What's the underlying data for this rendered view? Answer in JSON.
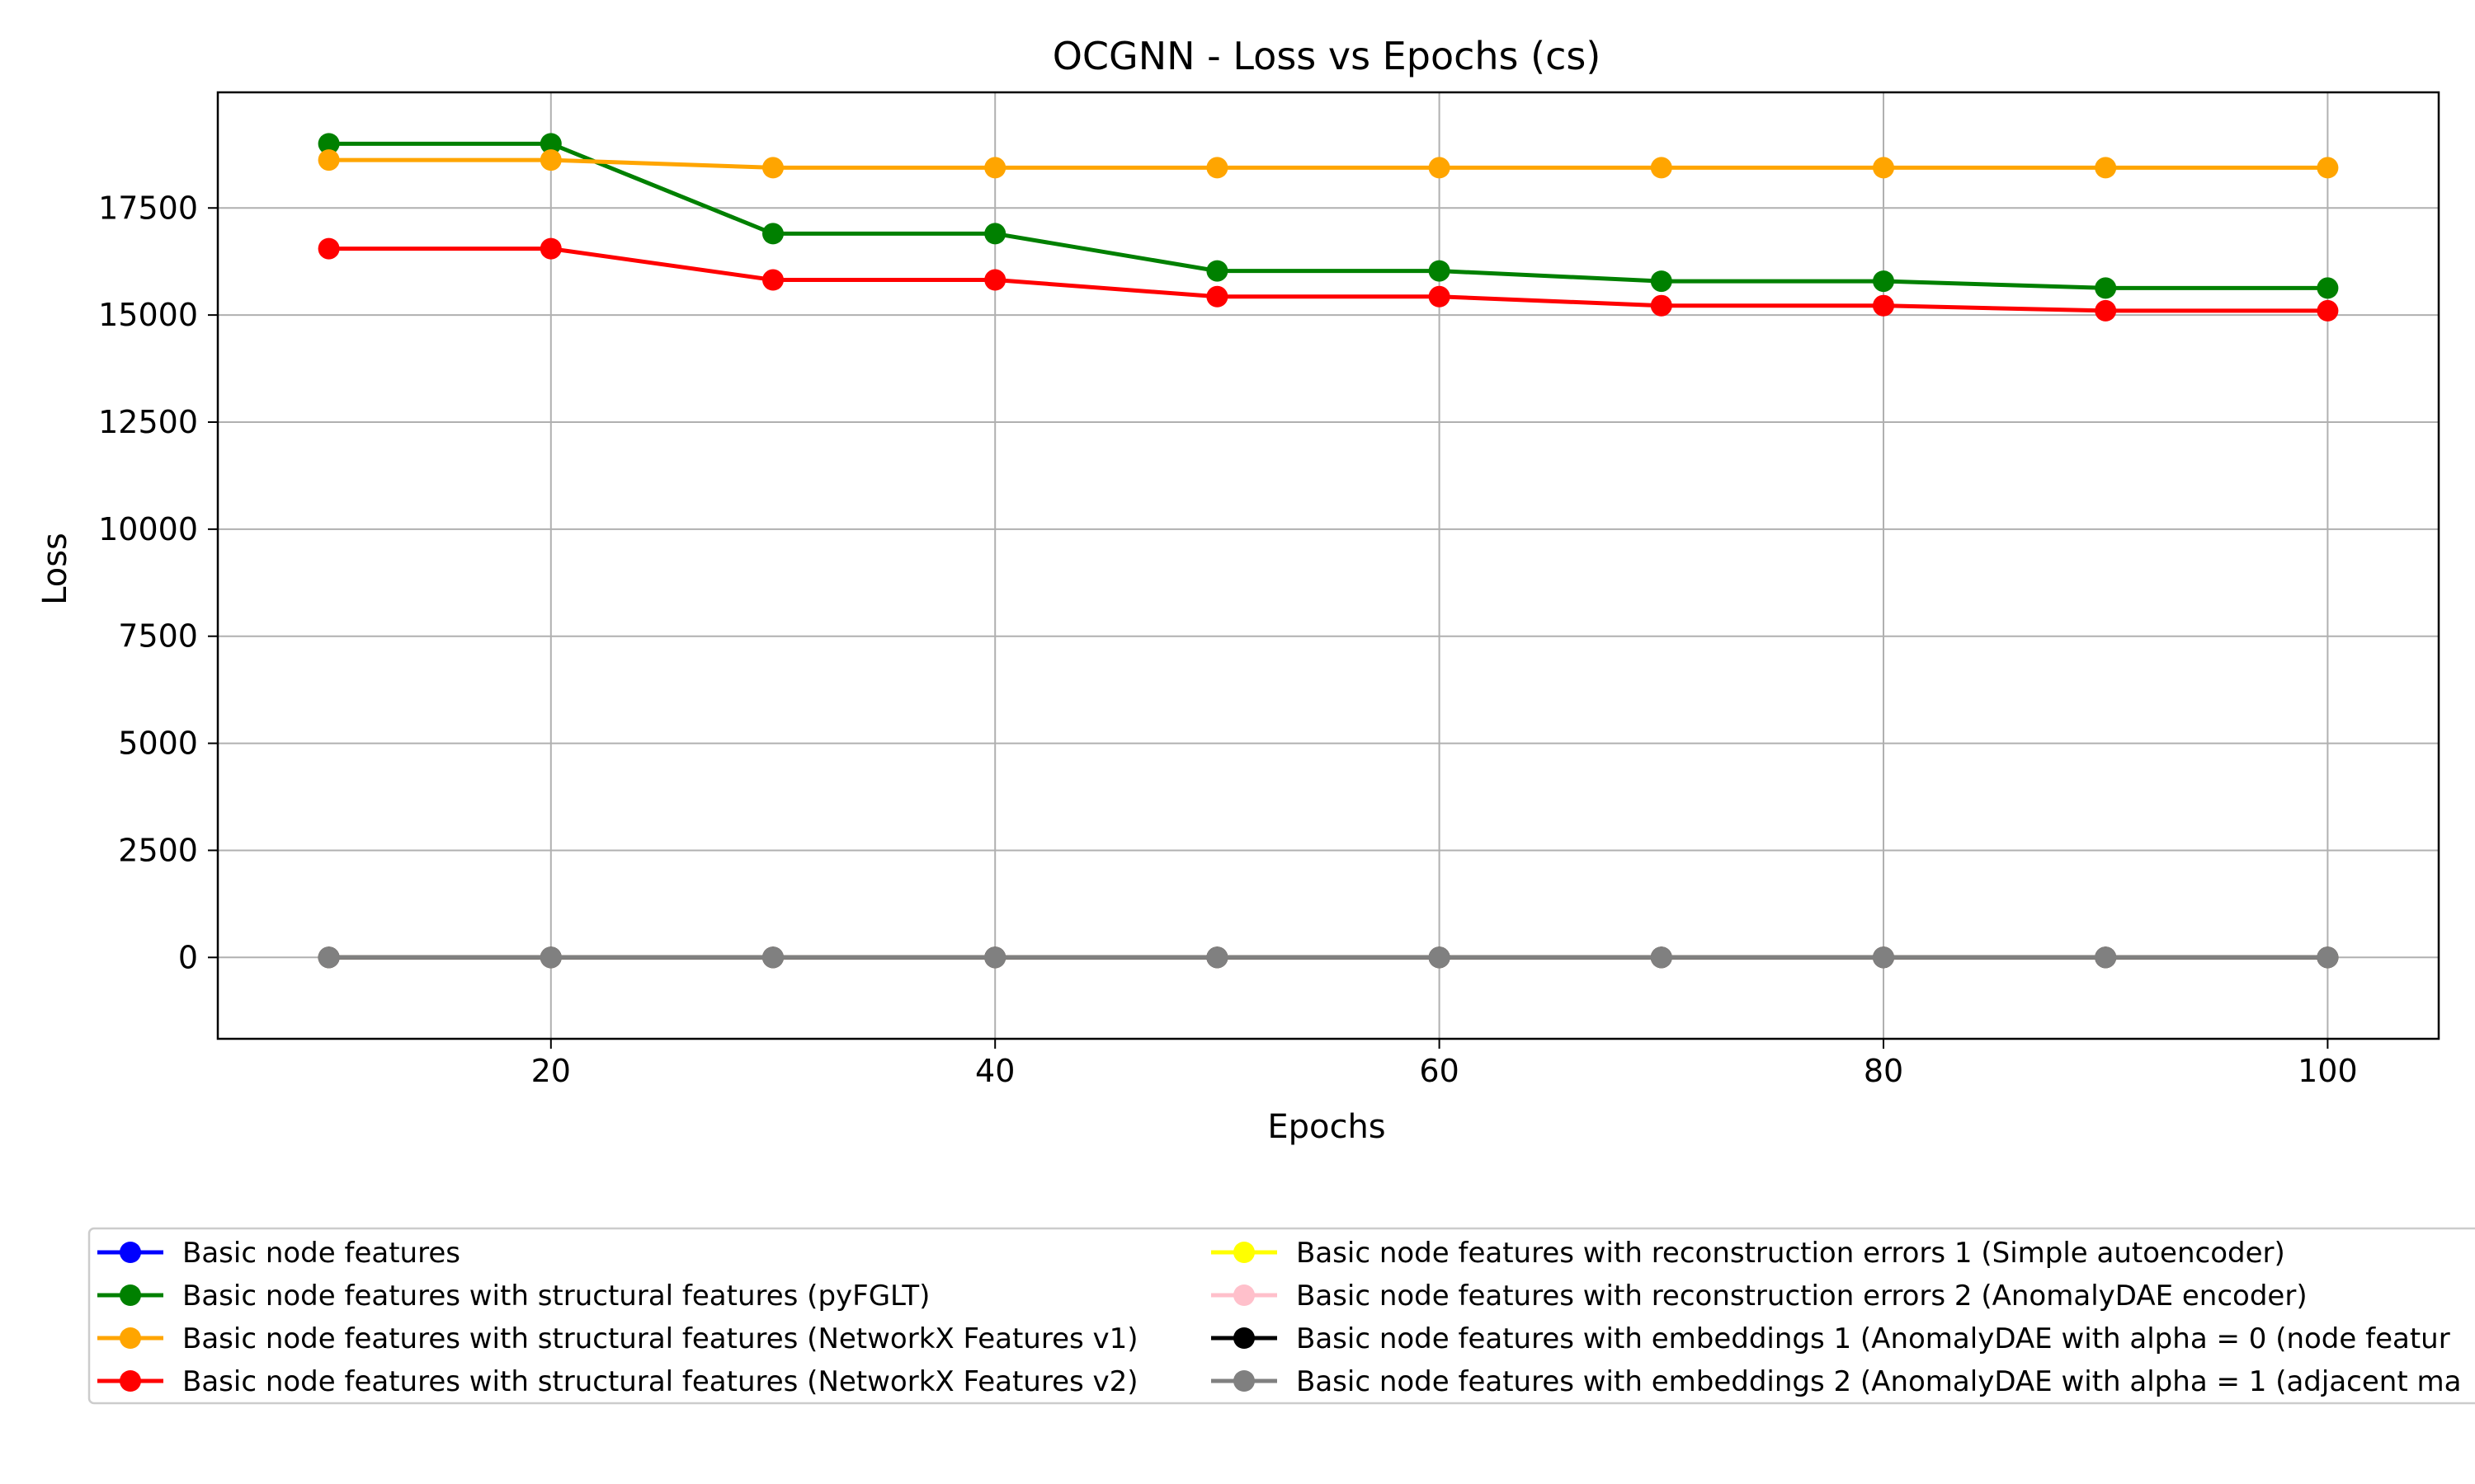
{
  "chart_data": {
    "type": "line",
    "title": "OCGNN - Loss vs Epochs (cs)",
    "xlabel": "Epochs",
    "ylabel": "Loss",
    "x": [
      10,
      20,
      30,
      40,
      50,
      60,
      70,
      80,
      90,
      100
    ],
    "xlim": [
      5,
      105
    ],
    "ylim": [
      -1900,
      20200
    ],
    "xticks": [
      20,
      40,
      60,
      80,
      100
    ],
    "yticks": [
      0,
      2500,
      5000,
      7500,
      10000,
      12500,
      15000,
      17500
    ],
    "grid": true,
    "legend_position": "bottom",
    "series": [
      {
        "name": "Basic node features",
        "color": "#0000ff",
        "values": [
          0,
          0,
          0,
          0,
          0,
          0,
          0,
          0,
          0,
          0
        ]
      },
      {
        "name": "Basic node features with structural features (pyFGLT)",
        "color": "#008000",
        "values": [
          19000,
          19000,
          16900,
          16900,
          16030,
          16030,
          15790,
          15790,
          15630,
          15630
        ]
      },
      {
        "name": "Basic node features with structural features (NetworkX Features v1)",
        "color": "#ffa500",
        "values": [
          18620,
          18620,
          18440,
          18440,
          18440,
          18440,
          18440,
          18440,
          18440,
          18440
        ]
      },
      {
        "name": "Basic node features with structural features (NetworkX Features v2)",
        "color": "#ff0000",
        "values": [
          16550,
          16550,
          15820,
          15820,
          15430,
          15430,
          15220,
          15220,
          15100,
          15100
        ]
      },
      {
        "name": "Basic node features with reconstruction errors 1 (Simple autoencoder)",
        "color": "#ffff00",
        "values": [
          0,
          0,
          0,
          0,
          0,
          0,
          0,
          0,
          0,
          0
        ]
      },
      {
        "name": "Basic node features with reconstruction errors 2 (AnomalyDAE encoder)",
        "color": "#ffc0cb",
        "values": [
          0,
          0,
          0,
          0,
          0,
          0,
          0,
          0,
          0,
          0
        ]
      },
      {
        "name": "Basic node features with embeddings 1 (AnomalyDAE with alpha = 0 (node featur",
        "color": "#000000",
        "values": [
          0,
          0,
          0,
          0,
          0,
          0,
          0,
          0,
          0,
          0
        ]
      },
      {
        "name": "Basic node features with embeddings 2 (AnomalyDAE with alpha = 1 (adjacent ma",
        "color": "#808080",
        "values": [
          0,
          0,
          0,
          0,
          0,
          0,
          0,
          0,
          0,
          0
        ]
      }
    ]
  }
}
